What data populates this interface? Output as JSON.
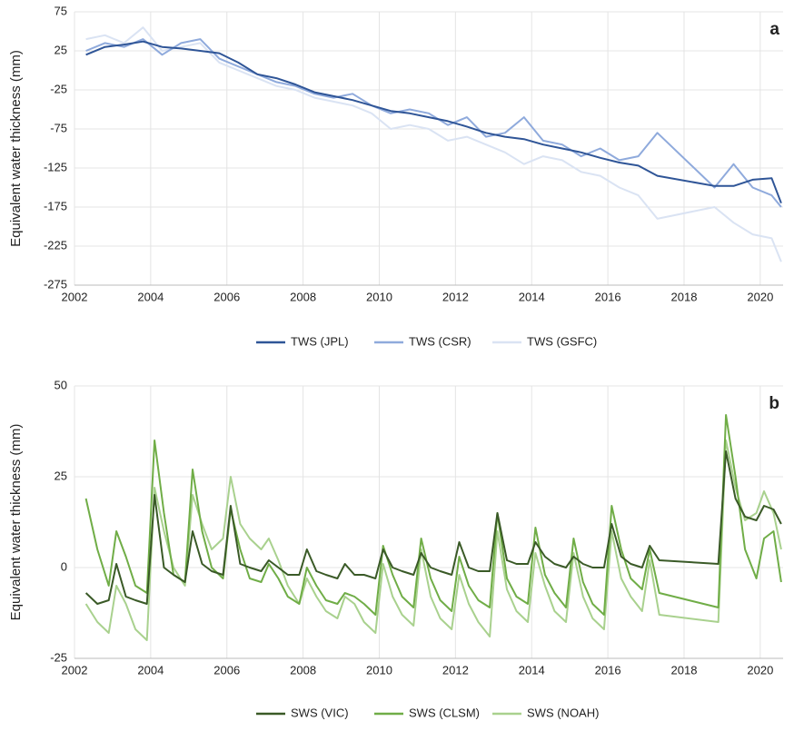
{
  "chart_data": [
    {
      "type": "line",
      "panel_label": "a",
      "y_label": "Equivalent water thickness (mm)",
      "xlim": [
        2002,
        2020.6
      ],
      "xticks": [
        2002,
        2004,
        2006,
        2008,
        2010,
        2012,
        2014,
        2016,
        2018,
        2020
      ],
      "ylim": [
        -275,
        75
      ],
      "yticks": [
        -275,
        -225,
        -175,
        -125,
        -75,
        -25,
        25,
        75
      ],
      "grid": true,
      "legend": "bottom",
      "x": [
        2002.3,
        2002.8,
        2003.3,
        2003.8,
        2004.3,
        2004.8,
        2005.3,
        2005.8,
        2006.3,
        2006.8,
        2007.3,
        2007.8,
        2008.3,
        2008.8,
        2009.3,
        2009.8,
        2010.3,
        2010.8,
        2011.3,
        2011.8,
        2012.3,
        2012.8,
        2013.3,
        2013.8,
        2014.3,
        2014.8,
        2015.3,
        2015.8,
        2016.3,
        2016.8,
        2017.3,
        2018.8,
        2019.3,
        2019.8,
        2020.3,
        2020.55
      ],
      "series": [
        {
          "name": "TWS (JPL)",
          "color": "#2f5597",
          "values": [
            20,
            30,
            33,
            37,
            30,
            28,
            25,
            22,
            10,
            -5,
            -10,
            -18,
            -28,
            -33,
            -38,
            -45,
            -52,
            -55,
            -60,
            -65,
            -72,
            -80,
            -85,
            -88,
            -95,
            -100,
            -105,
            -112,
            -118,
            -122,
            -135,
            -148,
            -148,
            -140,
            -138,
            -170
          ]
        },
        {
          "name": "TWS (CSR)",
          "color": "#8faadc",
          "values": [
            25,
            35,
            30,
            40,
            20,
            35,
            40,
            15,
            5,
            -5,
            -15,
            -20,
            -30,
            -35,
            -30,
            -45,
            -55,
            -50,
            -55,
            -70,
            -60,
            -85,
            -80,
            -60,
            -90,
            -95,
            -110,
            -100,
            -115,
            -110,
            -80,
            -150,
            -120,
            -150,
            -160,
            -175
          ]
        },
        {
          "name": "TWS (GSFC)",
          "color": "#dae3f3",
          "values": [
            40,
            45,
            35,
            55,
            25,
            30,
            35,
            10,
            0,
            -10,
            -20,
            -25,
            -35,
            -40,
            -45,
            -55,
            -75,
            -70,
            -75,
            -90,
            -85,
            -95,
            -105,
            -120,
            -110,
            -115,
            -130,
            -135,
            -150,
            -160,
            -190,
            -175,
            -195,
            -210,
            -215,
            -245
          ]
        }
      ]
    },
    {
      "type": "line",
      "panel_label": "b",
      "y_label": "Equivalent water thickness (mm)",
      "xlim": [
        2002,
        2020.6
      ],
      "xticks": [
        2002,
        2004,
        2006,
        2008,
        2010,
        2012,
        2014,
        2016,
        2018,
        2020
      ],
      "ylim": [
        -25,
        50
      ],
      "yticks": [
        -25,
        0,
        25,
        50
      ],
      "grid": true,
      "legend": "bottom",
      "x": [
        2002.3,
        2002.6,
        2002.9,
        2003.1,
        2003.35,
        2003.6,
        2003.9,
        2004.1,
        2004.35,
        2004.6,
        2004.9,
        2005.1,
        2005.35,
        2005.6,
        2005.9,
        2006.1,
        2006.35,
        2006.6,
        2006.9,
        2007.1,
        2007.35,
        2007.6,
        2007.9,
        2008.1,
        2008.35,
        2008.6,
        2008.9,
        2009.1,
        2009.35,
        2009.6,
        2009.9,
        2010.1,
        2010.35,
        2010.6,
        2010.9,
        2011.1,
        2011.35,
        2011.6,
        2011.9,
        2012.1,
        2012.35,
        2012.6,
        2012.9,
        2013.1,
        2013.35,
        2013.6,
        2013.9,
        2014.1,
        2014.35,
        2014.6,
        2014.9,
        2015.1,
        2015.35,
        2015.6,
        2015.9,
        2016.1,
        2016.35,
        2016.6,
        2016.9,
        2017.1,
        2017.35,
        2018.9,
        2019.1,
        2019.35,
        2019.6,
        2019.9,
        2020.1,
        2020.35,
        2020.55
      ],
      "series": [
        {
          "name": "SWS (VIC)",
          "color": "#3a5a27",
          "values": [
            -7,
            -10,
            -9,
            1,
            -8,
            -9,
            -10,
            20,
            0,
            -2,
            -4,
            10,
            1,
            -1,
            -2,
            17,
            1,
            0,
            -1,
            2,
            0,
            -2,
            -2,
            5,
            -1,
            -2,
            -3,
            1,
            -2,
            -2,
            -3,
            5,
            0,
            -1,
            -2,
            4,
            0,
            -1,
            -2,
            7,
            0,
            -1,
            -1,
            15,
            2,
            1,
            1,
            7,
            3,
            1,
            0,
            3,
            1,
            0,
            0,
            12,
            3,
            1,
            0,
            6,
            2,
            1,
            32,
            19,
            14,
            13,
            17,
            16,
            12
          ]
        },
        {
          "name": "SWS (CLSM)",
          "color": "#70ad47",
          "values": [
            19,
            5,
            -5,
            10,
            3,
            -5,
            -7,
            35,
            15,
            -2,
            -4,
            27,
            10,
            0,
            -3,
            16,
            5,
            -3,
            -4,
            1,
            -3,
            -8,
            -10,
            0,
            -5,
            -9,
            -10,
            -7,
            -8,
            -10,
            -13,
            6,
            -2,
            -8,
            -11,
            8,
            -3,
            -9,
            -12,
            3,
            -5,
            -9,
            -11,
            15,
            -3,
            -8,
            -10,
            11,
            -2,
            -7,
            -11,
            8,
            -4,
            -10,
            -13,
            17,
            5,
            -3,
            -6,
            5,
            -7,
            -11,
            42,
            25,
            5,
            -3,
            8,
            10,
            -4
          ]
        },
        {
          "name": "SWS (NOAH)",
          "color": "#a9d18e",
          "values": [
            -10,
            -15,
            -18,
            -5,
            -10,
            -17,
            -20,
            22,
            10,
            0,
            -5,
            20,
            12,
            5,
            8,
            25,
            12,
            8,
            5,
            8,
            2,
            -5,
            -10,
            -3,
            -8,
            -12,
            -14,
            -8,
            -10,
            -15,
            -18,
            1,
            -8,
            -13,
            -16,
            5,
            -8,
            -14,
            -17,
            -2,
            -10,
            -15,
            -19,
            10,
            -6,
            -12,
            -15,
            4,
            -5,
            -12,
            -15,
            4,
            -8,
            -14,
            -17,
            10,
            -3,
            -8,
            -12,
            2,
            -13,
            -15,
            35,
            22,
            13,
            15,
            21,
            15,
            5
          ]
        }
      ]
    }
  ]
}
